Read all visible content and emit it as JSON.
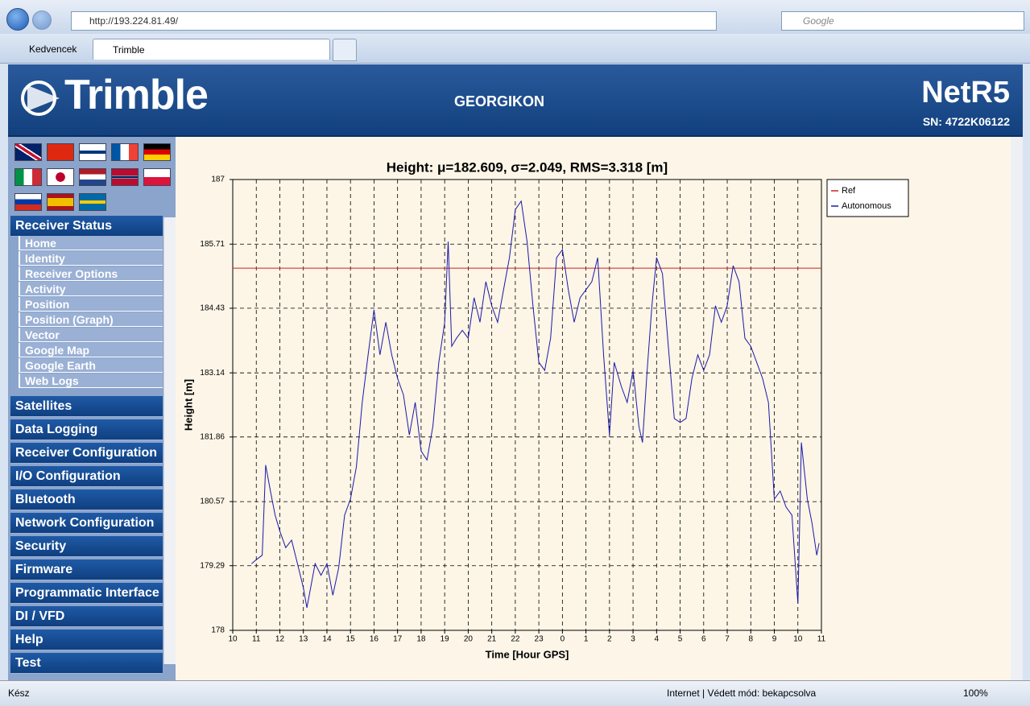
{
  "browser": {
    "address": "http://193.224.81.49/",
    "search": "Google",
    "favorites": "Kedvencek",
    "tab": "Trimble",
    "status": "Kész",
    "zone": "Internet | Védett mód: bekapcsolva",
    "zoom": "100%"
  },
  "header": {
    "logo": "Trimble",
    "site": "GEORGIKON",
    "model": "NetR5",
    "serial": "SN: 4722K06122"
  },
  "menu": {
    "status_title": "Receiver Status",
    "status_items": [
      "Home",
      "Identity",
      "Receiver Options",
      "Activity",
      "Position",
      "Position (Graph)",
      "Vector",
      "Google Map",
      "Google Earth",
      "Web Logs"
    ],
    "sections": [
      "Satellites",
      "Data Logging",
      "Receiver Configuration",
      "I/O Configuration",
      "Bluetooth",
      "Network Configuration",
      "Security",
      "Firmware",
      "Programmatic Interface",
      "DI / VFD",
      "Help",
      "Test"
    ]
  },
  "chart_data": {
    "type": "line",
    "title": "Height: μ=182.609, σ=2.049, RMS=3.318 [m]",
    "x_label": "Time [Hour GPS]",
    "y_label": "Height [m]",
    "xlim": [
      10,
      35
    ],
    "ylim": [
      178,
      187
    ],
    "xticks": [
      10,
      11,
      12,
      13,
      14,
      15,
      16,
      17,
      18,
      19,
      20,
      21,
      22,
      23,
      {
        "value": 24,
        "label": "0"
      },
      {
        "value": 25,
        "label": "1"
      },
      {
        "value": 26,
        "label": "2"
      },
      {
        "value": 27,
        "label": "3"
      },
      {
        "value": 28,
        "label": "4"
      },
      {
        "value": 29,
        "label": "5"
      },
      {
        "value": 30,
        "label": "6"
      },
      {
        "value": 31,
        "label": "7"
      },
      {
        "value": 32,
        "label": "8"
      },
      {
        "value": 33,
        "label": "9"
      },
      {
        "value": 34,
        "label": "10"
      },
      {
        "value": 35,
        "label": "11"
      }
    ],
    "yticks": [
      178,
      179.29,
      180.57,
      181.86,
      183.14,
      184.43,
      185.71,
      187
    ],
    "grid": true,
    "legend": "right",
    "series": [
      {
        "name": "Ref",
        "color": "#cc2222",
        "x": [
          10,
          35
        ],
        "values": [
          185.23,
          185.23
        ]
      },
      {
        "name": "Autonomous",
        "color": "#1a1aaa",
        "x": [
          10.8,
          11,
          11.25,
          11.4,
          11.6,
          11.8,
          12,
          12.25,
          12.5,
          12.75,
          13,
          13.15,
          13.5,
          13.75,
          14,
          14.25,
          14.5,
          14.75,
          15,
          15.25,
          15.5,
          15.75,
          16,
          16.25,
          16.5,
          16.75,
          17,
          17.25,
          17.5,
          17.75,
          18,
          18.25,
          18.5,
          18.75,
          19,
          19.15,
          19.3,
          19.5,
          19.75,
          20,
          20.25,
          20.5,
          20.75,
          21,
          21.25,
          21.5,
          21.75,
          22,
          22.25,
          22.5,
          22.75,
          23,
          23.25,
          23.5,
          23.75,
          24,
          24.25,
          24.5,
          24.75,
          25,
          25.25,
          25.5,
          25.75,
          26,
          26.2,
          26.5,
          26.75,
          27,
          27.25,
          27.4,
          27.6,
          27.8,
          28,
          28.25,
          28.5,
          28.75,
          29,
          29.25,
          29.5,
          29.75,
          30,
          30.25,
          30.5,
          30.75,
          31,
          31.25,
          31.5,
          31.75,
          32,
          32.25,
          32.5,
          32.75,
          33,
          33.25,
          33.5,
          33.75,
          34,
          34.15,
          34.4,
          34.6,
          34.8,
          34.9
        ],
        "values": [
          179.33,
          179.41,
          179.5,
          181.3,
          180.78,
          180.3,
          179.98,
          179.65,
          179.8,
          179.33,
          178.85,
          178.45,
          179.33,
          179.1,
          179.33,
          178.7,
          179.25,
          180.3,
          180.62,
          181.26,
          182.55,
          183.5,
          184.4,
          183.5,
          184.15,
          183.5,
          183.03,
          182.7,
          181.9,
          182.55,
          181.58,
          181.4,
          182.07,
          183.35,
          184.15,
          185.76,
          183.67,
          183.83,
          183.99,
          183.83,
          184.64,
          184.15,
          184.96,
          184.48,
          184.15,
          184.8,
          185.44,
          186.4,
          186.57,
          185.76,
          184.48,
          183.35,
          183.19,
          183.83,
          185.44,
          185.6,
          184.8,
          184.15,
          184.64,
          184.8,
          184.96,
          185.44,
          183.5,
          181.9,
          183.35,
          182.87,
          182.55,
          183.19,
          182.07,
          181.75,
          183.19,
          184.48,
          185.44,
          185.12,
          183.67,
          182.23,
          182.15,
          182.23,
          183.03,
          183.5,
          183.19,
          183.5,
          184.48,
          184.15,
          184.48,
          185.28,
          184.96,
          183.83,
          183.67,
          183.35,
          183.03,
          182.55,
          180.62,
          180.78,
          180.46,
          180.3,
          178.53,
          181.75,
          180.62,
          180.14,
          179.5,
          179.74
        ]
      }
    ]
  }
}
